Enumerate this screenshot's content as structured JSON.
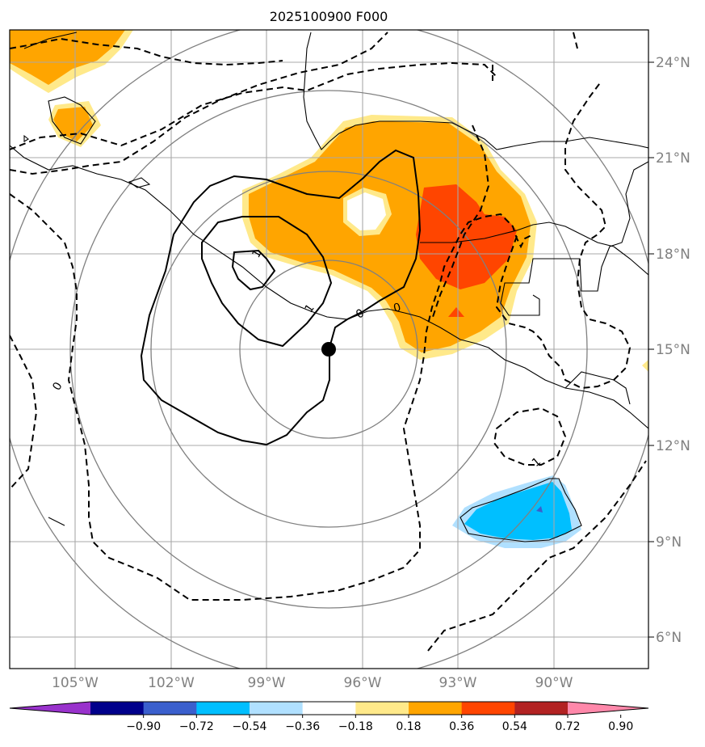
{
  "title": "2025100900 F000",
  "map": {
    "lat_labels": [
      "24°N",
      "21°N",
      "18°N",
      "15°N",
      "12°N",
      "9°N",
      "6°N"
    ],
    "lon_labels": [
      "105°W",
      "102°W",
      "99°W",
      "96°W",
      "93°W",
      "90°W"
    ],
    "center_marker": {
      "lon": -97.0,
      "lat": 15.0
    },
    "contour_labels": [
      "1",
      "1",
      "0",
      "0",
      "0",
      "1"
    ]
  },
  "colorbar": {
    "tick_labels": [
      "−0.90",
      "−0.72",
      "−0.54",
      "−0.36",
      "−0.18",
      "0.18",
      "0.36",
      "0.54",
      "0.72",
      "0.90"
    ],
    "colors": [
      "#9932cc",
      "#00008b",
      "#3a5fcd",
      "#00bfff",
      "#b0e0ff",
      "#ffffff",
      "#ffe98a",
      "#ffa500",
      "#ff4500",
      "#b22222",
      "#ff88aa"
    ]
  }
}
